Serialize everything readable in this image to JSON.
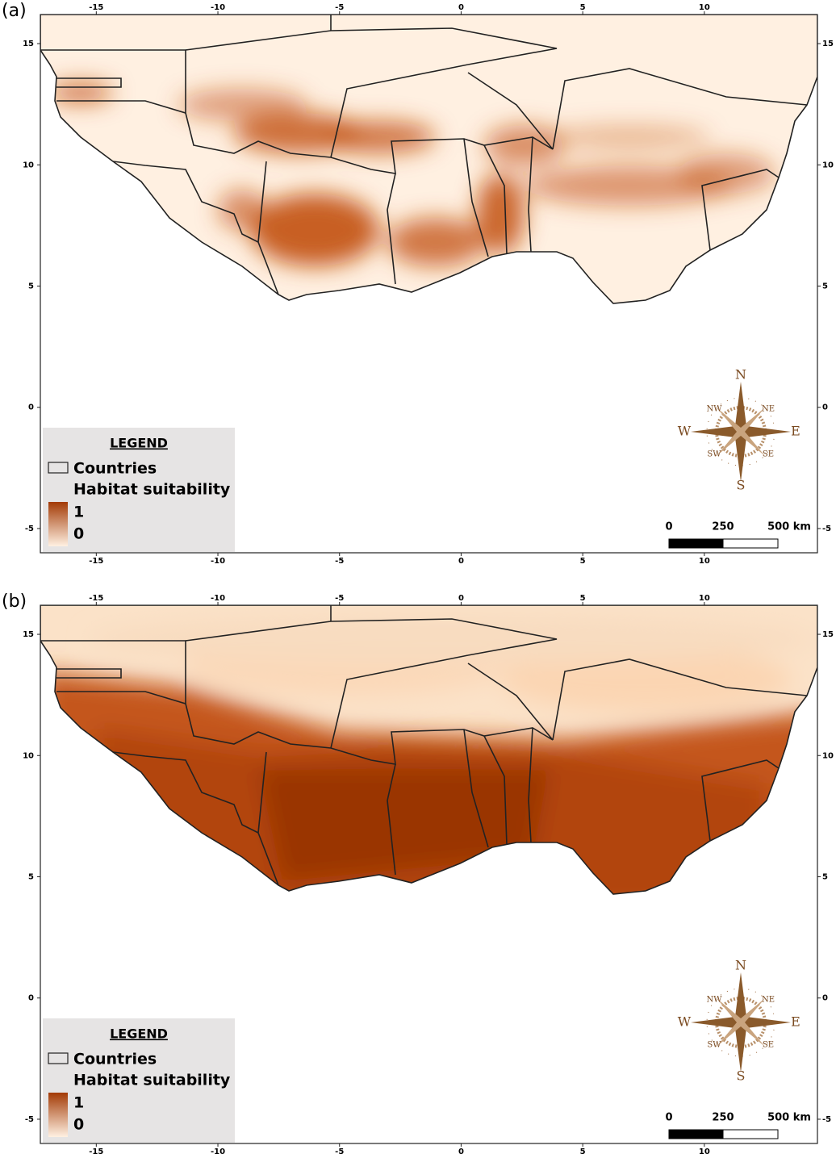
{
  "panels": [
    {
      "label": "(a)"
    },
    {
      "label": "(b)"
    }
  ],
  "axes": {
    "xlim": [
      -17.3,
      14.65
    ],
    "ylim": [
      -6,
      16.2
    ],
    "xticks": [
      -15,
      -10,
      -5,
      0,
      5,
      10
    ],
    "yticks": [
      15,
      10,
      5,
      0,
      -5
    ]
  },
  "legend": {
    "title": "LEGEND",
    "countries": "Countries",
    "suitability": "Habitat suitability",
    "max": 1,
    "min": 0
  },
  "compass": {
    "n": "N",
    "e": "E",
    "s": "S",
    "w": "W",
    "nw": "NW",
    "ne": "NE",
    "sw": "SW",
    "se": "SE"
  },
  "scale_bar": [
    "0",
    "250",
    "500 km"
  ]
}
